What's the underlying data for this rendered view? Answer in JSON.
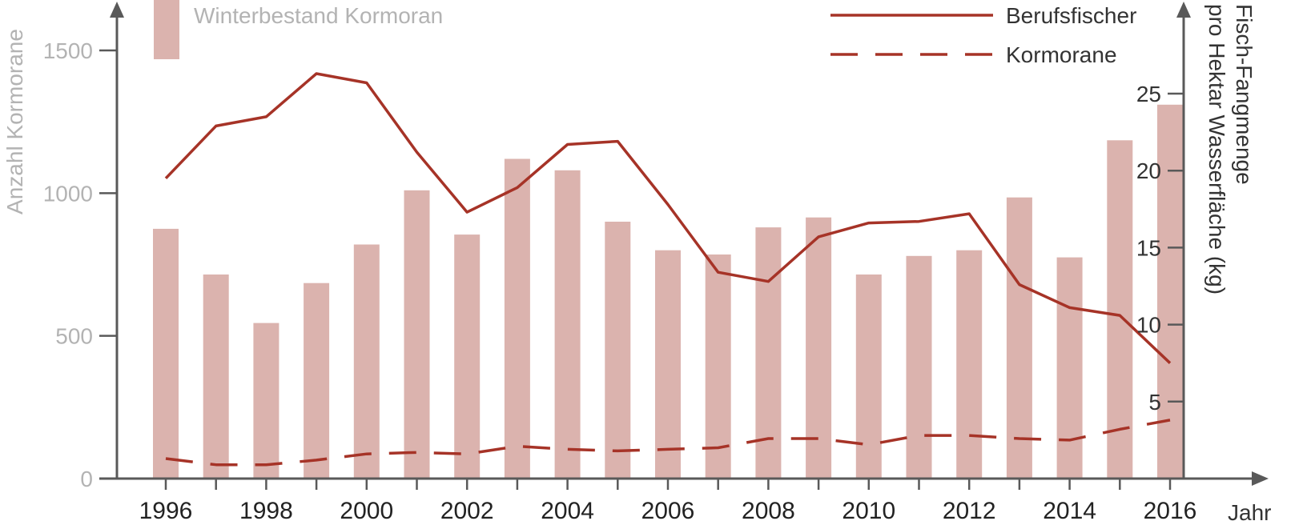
{
  "chart_data": {
    "type": "bar",
    "categories": [
      "1996",
      "1997",
      "1998",
      "1999",
      "2000",
      "2001",
      "2002",
      "2003",
      "2004",
      "2005",
      "2006",
      "2007",
      "2008",
      "2009",
      "2010",
      "2011",
      "2012",
      "2013",
      "2014",
      "2015",
      "2016"
    ],
    "x_tick_labels": [
      "1996",
      "1998",
      "2000",
      "2002",
      "2004",
      "2006",
      "2008",
      "2010",
      "2012",
      "2014",
      "2016"
    ],
    "xlabel": "Jahr",
    "ylabel_left": "Anzahl Kormorane",
    "ylabel_right": [
      "Fisch-Fangmenge",
      "pro Hektar Wasserfläche (kg)"
    ],
    "ylim_left": [
      0,
      1500
    ],
    "ylim_right": [
      0,
      25
    ],
    "left_ticks": [
      0,
      500,
      1000,
      1500
    ],
    "right_ticks": [
      5,
      10,
      15,
      20,
      25
    ],
    "series": [
      {
        "name": "Winterbestand Kormoran",
        "kind": "bar",
        "axis": "left",
        "color": "#dbb3ae",
        "values": [
          875,
          715,
          545,
          685,
          820,
          1010,
          855,
          1120,
          1080,
          900,
          800,
          785,
          880,
          915,
          715,
          780,
          800,
          985,
          775,
          1185,
          1310
        ]
      },
      {
        "name": "Berufsfischer",
        "kind": "line",
        "axis": "right",
        "color": "#a63327",
        "dash": "solid",
        "values": [
          19.5,
          22.9,
          23.5,
          26.3,
          25.7,
          21.2,
          17.3,
          18.9,
          21.7,
          21.9,
          17.8,
          13.4,
          12.8,
          15.7,
          16.6,
          16.7,
          17.2,
          12.6,
          11.1,
          10.6,
          7.5
        ]
      },
      {
        "name": "Kormorane",
        "kind": "line",
        "axis": "right",
        "color": "#a63327",
        "dash": "dashed",
        "values": [
          1.3,
          0.9,
          0.9,
          1.2,
          1.6,
          1.7,
          1.6,
          2.1,
          1.9,
          1.8,
          1.9,
          2.0,
          2.6,
          2.6,
          2.2,
          2.8,
          2.8,
          2.6,
          2.5,
          3.2,
          3.8
        ]
      }
    ],
    "legend": {
      "bar_label": "Winterbestand Kormoran",
      "line_solid_label": "Berufsfischer",
      "line_dashed_label": "Kormorane"
    }
  }
}
